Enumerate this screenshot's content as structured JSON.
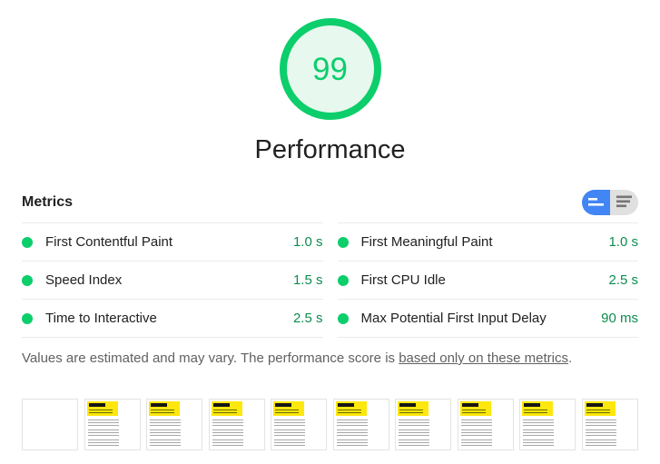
{
  "gauge": {
    "score": "99",
    "category": "Performance"
  },
  "metrics": {
    "heading": "Metrics",
    "items": [
      {
        "label": "First Contentful Paint",
        "value": "1.0 s",
        "status": "pass"
      },
      {
        "label": "First Meaningful Paint",
        "value": "1.0 s",
        "status": "pass"
      },
      {
        "label": "Speed Index",
        "value": "1.5 s",
        "status": "pass"
      },
      {
        "label": "First CPU Idle",
        "value": "2.5 s",
        "status": "pass"
      },
      {
        "label": "Time to Interactive",
        "value": "2.5 s",
        "status": "pass"
      },
      {
        "label": "Max Potential First Input Delay",
        "value": "90 ms",
        "status": "pass"
      }
    ],
    "view_toggle": {
      "options": [
        "condensed-view",
        "expanded-view"
      ],
      "selected": "condensed-view"
    }
  },
  "disclaimer": {
    "text_before_link": "Values are estimated and may vary. The performance score is ",
    "link_text": "based only on these metrics",
    "text_after_link": "."
  },
  "filmstrip": {
    "frame_count": 10,
    "frames": [
      "blank",
      "page",
      "page",
      "page",
      "page",
      "page",
      "page",
      "page",
      "page",
      "page"
    ]
  },
  "colors": {
    "pass_green": "#0cce6b",
    "value_green": "#0d8c4f",
    "gauge_fill": "#e7f8ee",
    "toggle_active_blue": "#4285f4",
    "toggle_inactive_gray": "#e0e0e0",
    "filmstrip_page_yellow": "#fde70c"
  }
}
